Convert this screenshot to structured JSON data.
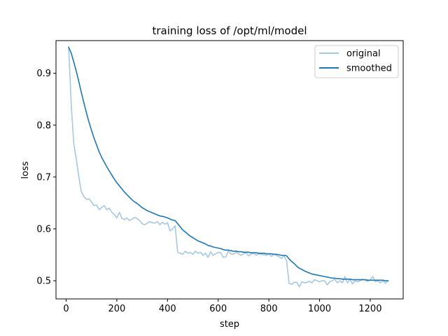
{
  "chart_data": {
    "type": "line",
    "title": "training loss of /opt/ml/model",
    "xlabel": "step",
    "ylabel": "loss",
    "xlim": [
      -40,
      1330
    ],
    "ylim": [
      0.465,
      0.963
    ],
    "xticks": [
      0,
      200,
      400,
      600,
      800,
      1000,
      1200
    ],
    "yticks": [
      0.5,
      0.6,
      0.7,
      0.8,
      0.9
    ],
    "grid": false,
    "legend_position": "top-right",
    "series": [
      {
        "name": "original",
        "color": "#a6c8e3",
        "x": [
          10,
          20,
          30,
          40,
          50,
          60,
          70,
          80,
          90,
          100,
          110,
          120,
          130,
          140,
          150,
          160,
          170,
          180,
          190,
          200,
          210,
          220,
          230,
          240,
          250,
          260,
          270,
          280,
          290,
          300,
          310,
          320,
          330,
          340,
          350,
          360,
          370,
          380,
          390,
          400,
          410,
          420,
          430,
          440,
          450,
          460,
          470,
          480,
          490,
          500,
          510,
          520,
          530,
          540,
          550,
          560,
          570,
          580,
          590,
          600,
          610,
          620,
          630,
          640,
          650,
          660,
          670,
          680,
          690,
          700,
          710,
          720,
          730,
          740,
          750,
          760,
          770,
          780,
          790,
          800,
          810,
          820,
          830,
          840,
          850,
          860,
          870,
          880,
          890,
          900,
          910,
          920,
          930,
          940,
          950,
          960,
          970,
          980,
          990,
          1000,
          1010,
          1020,
          1030,
          1040,
          1050,
          1060,
          1070,
          1080,
          1090,
          1100,
          1110,
          1120,
          1130,
          1140,
          1150,
          1160,
          1170,
          1180,
          1190,
          1200,
          1210,
          1220,
          1230,
          1240,
          1250,
          1260,
          1270
        ],
        "y": [
          0.95,
          0.84,
          0.765,
          0.735,
          0.7,
          0.672,
          0.662,
          0.657,
          0.658,
          0.652,
          0.645,
          0.646,
          0.637,
          0.641,
          0.645,
          0.637,
          0.64,
          0.632,
          0.628,
          0.621,
          0.632,
          0.62,
          0.618,
          0.621,
          0.616,
          0.619,
          0.622,
          0.62,
          0.616,
          0.61,
          0.608,
          0.611,
          0.614,
          0.612,
          0.611,
          0.614,
          0.608,
          0.613,
          0.609,
          0.612,
          0.596,
          0.6,
          0.606,
          0.555,
          0.553,
          0.551,
          0.557,
          0.553,
          0.555,
          0.551,
          0.557,
          0.553,
          0.555,
          0.549,
          0.553,
          0.545,
          0.556,
          0.549,
          0.552,
          0.555,
          0.554,
          0.545,
          0.546,
          0.557,
          0.552,
          0.551,
          0.555,
          0.552,
          0.549,
          0.552,
          0.554,
          0.548,
          0.551,
          0.553,
          0.549,
          0.552,
          0.551,
          0.55,
          0.549,
          0.552,
          0.547,
          0.551,
          0.549,
          0.546,
          0.543,
          0.548,
          0.538,
          0.495,
          0.493,
          0.497,
          0.497,
          0.488,
          0.498,
          0.496,
          0.497,
          0.499,
          0.496,
          0.502,
          0.5,
          0.498,
          0.5,
          0.5,
          0.492,
          0.498,
          0.5,
          0.503,
          0.496,
          0.5,
          0.496,
          0.508,
          0.496,
          0.502,
          0.494,
          0.5,
          0.498,
          0.5,
          0.503,
          0.501,
          0.499,
          0.502,
          0.508,
          0.498,
          0.5,
          0.496,
          0.5,
          0.495,
          0.5
        ]
      },
      {
        "name": "smoothed",
        "color": "#1f77b4",
        "x": [
          10,
          20,
          30,
          40,
          50,
          60,
          70,
          80,
          90,
          100,
          110,
          120,
          130,
          140,
          150,
          160,
          170,
          180,
          190,
          200,
          210,
          220,
          230,
          240,
          250,
          260,
          270,
          280,
          290,
          300,
          310,
          320,
          330,
          340,
          350,
          360,
          370,
          380,
          390,
          400,
          410,
          420,
          430,
          440,
          450,
          460,
          470,
          480,
          490,
          500,
          510,
          520,
          530,
          540,
          550,
          560,
          570,
          580,
          590,
          600,
          610,
          620,
          630,
          640,
          650,
          660,
          670,
          680,
          690,
          700,
          710,
          720,
          730,
          740,
          750,
          760,
          770,
          780,
          790,
          800,
          810,
          820,
          830,
          840,
          850,
          860,
          870,
          880,
          890,
          900,
          910,
          920,
          930,
          940,
          950,
          960,
          970,
          980,
          990,
          1000,
          1010,
          1020,
          1030,
          1040,
          1050,
          1060,
          1070,
          1080,
          1090,
          1100,
          1110,
          1120,
          1130,
          1140,
          1150,
          1160,
          1170,
          1180,
          1190,
          1200,
          1210,
          1220,
          1230,
          1240,
          1250,
          1260,
          1270
        ],
        "y": [
          0.95,
          0.939,
          0.922,
          0.904,
          0.884,
          0.863,
          0.843,
          0.824,
          0.806,
          0.79,
          0.775,
          0.762,
          0.749,
          0.738,
          0.729,
          0.72,
          0.712,
          0.704,
          0.696,
          0.689,
          0.683,
          0.677,
          0.671,
          0.666,
          0.661,
          0.656,
          0.652,
          0.649,
          0.645,
          0.641,
          0.638,
          0.635,
          0.633,
          0.631,
          0.629,
          0.627,
          0.625,
          0.624,
          0.623,
          0.621,
          0.619,
          0.617,
          0.616,
          0.61,
          0.604,
          0.598,
          0.594,
          0.59,
          0.586,
          0.583,
          0.58,
          0.577,
          0.575,
          0.573,
          0.571,
          0.568,
          0.567,
          0.565,
          0.564,
          0.563,
          0.562,
          0.56,
          0.559,
          0.559,
          0.558,
          0.557,
          0.557,
          0.556,
          0.556,
          0.555,
          0.555,
          0.555,
          0.554,
          0.554,
          0.554,
          0.553,
          0.553,
          0.553,
          0.552,
          0.552,
          0.552,
          0.551,
          0.551,
          0.55,
          0.549,
          0.549,
          0.548,
          0.542,
          0.537,
          0.533,
          0.528,
          0.524,
          0.522,
          0.519,
          0.517,
          0.515,
          0.513,
          0.512,
          0.511,
          0.51,
          0.509,
          0.508,
          0.507,
          0.506,
          0.505,
          0.505,
          0.504,
          0.504,
          0.503,
          0.503,
          0.503,
          0.503,
          0.502,
          0.502,
          0.502,
          0.502,
          0.502,
          0.502,
          0.501,
          0.501,
          0.501,
          0.501,
          0.501,
          0.501,
          0.501,
          0.5,
          0.5
        ]
      }
    ]
  }
}
